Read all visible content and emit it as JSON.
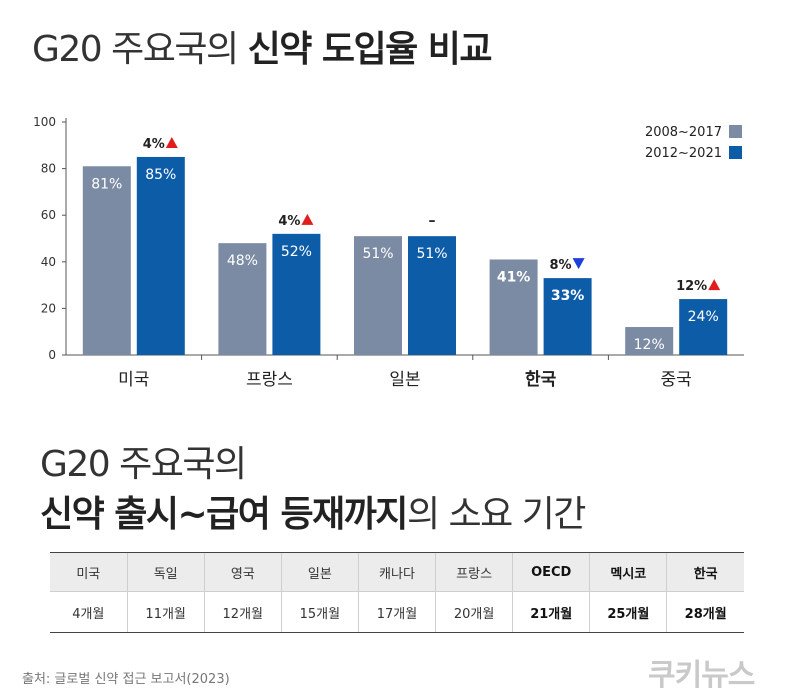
{
  "title_top": {
    "normal": "G20 주요국의",
    "bold": "신약 도입율 비교"
  },
  "chart_data": {
    "type": "bar",
    "categories": [
      "미국",
      "프랑스",
      "일본",
      "한국",
      "중국"
    ],
    "highlight_category": "한국",
    "series": [
      {
        "name": "2008~2017",
        "color": "#7b8ba3",
        "values": [
          81,
          48,
          51,
          41,
          12
        ],
        "labels": [
          "81%",
          "48%",
          "51%",
          "41%",
          "12%"
        ]
      },
      {
        "name": "2012~2021",
        "color": "#0d5ca8",
        "values": [
          85,
          52,
          51,
          33,
          24
        ],
        "labels": [
          "85%",
          "52%",
          "51%",
          "33%",
          "24%"
        ]
      }
    ],
    "changes": [
      {
        "text": "4%",
        "direction": "up"
      },
      {
        "text": "4%",
        "direction": "up"
      },
      {
        "text": "–",
        "direction": "none"
      },
      {
        "text": "8%",
        "direction": "down"
      },
      {
        "text": "12%",
        "direction": "up"
      }
    ],
    "change_colors": {
      "up": "#e01e1e",
      "down": "#1e3fd8"
    },
    "ylim": [
      0,
      100
    ],
    "yticks": [
      0,
      20,
      40,
      60,
      80,
      100
    ],
    "legend_position": "top-right",
    "grid": false
  },
  "title_bottom": {
    "line1": "G20 주요국의",
    "line2_bold": "신약 출시~급여 등재까지",
    "line2_normal": "의 소요 기간"
  },
  "table": {
    "headers": [
      "미국",
      "독일",
      "영국",
      "일본",
      "캐나다",
      "프랑스",
      "OECD",
      "멕시코",
      "한국"
    ],
    "values": [
      "4개월",
      "11개월",
      "12개월",
      "15개월",
      "17개월",
      "20개월",
      "21개월",
      "25개월",
      "28개월"
    ],
    "bold_columns": [
      "OECD",
      "멕시코",
      "한국"
    ]
  },
  "source": "출처: 글로벌 신약 접근 보고서(2023)",
  "logo": "쿠키뉴스"
}
